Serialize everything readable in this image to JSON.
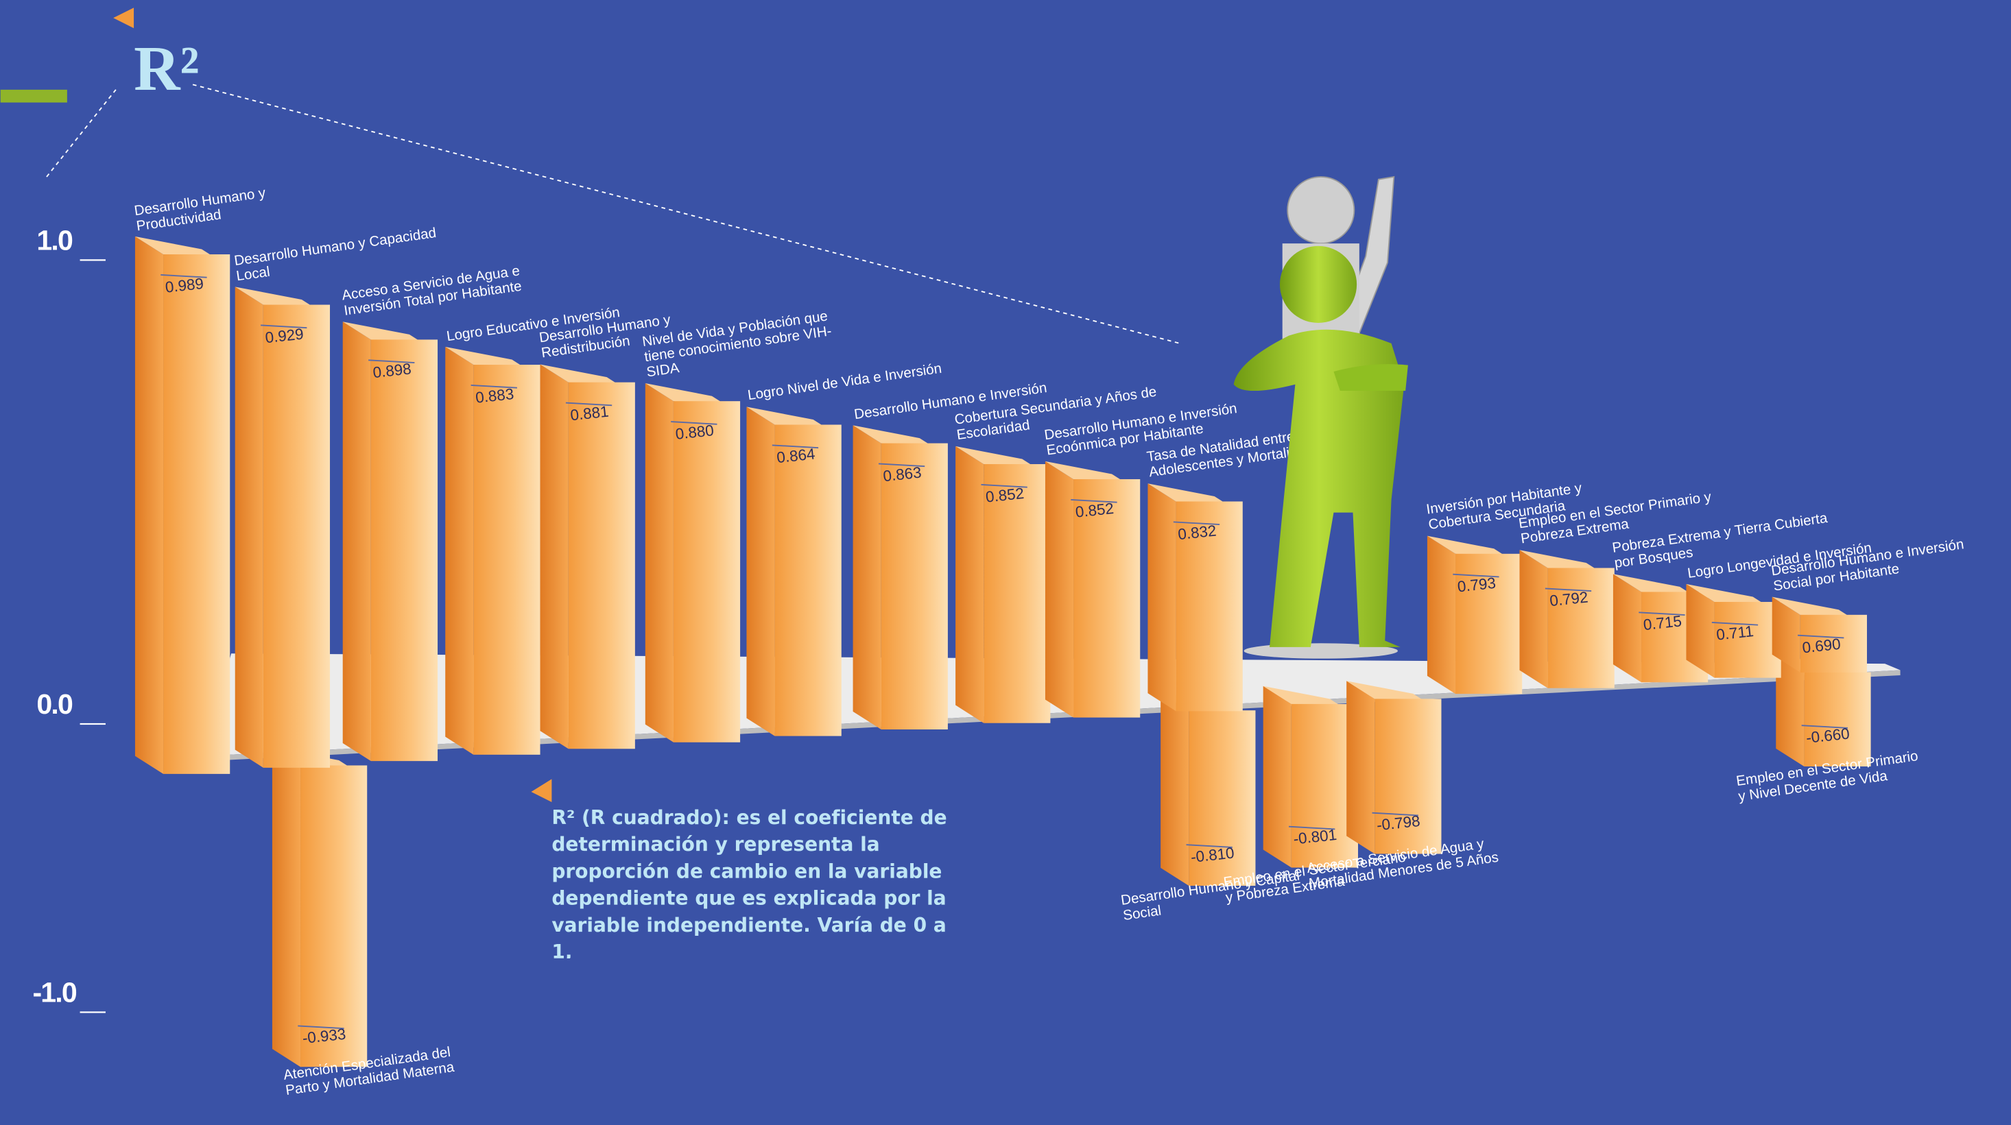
{
  "chart_data": {
    "type": "bar3d",
    "title": "R²",
    "description": "R² (R cuadrado): es el coeficiente de determinación y representa la proporción de cambio en la variable dependiente que es explicada por la variable independiente. Varía de 0 a 1,",
    "categories": [
      "Desarrollo Humano y Productividad",
      "Atención Especializada del Parto y Mortalidad Materna",
      "Desarrollo Humano y Capacidad Local",
      "Acceso a Servicio de Agua e Inversión Total por Habitante",
      "Logro Educativo e Inversión",
      "Desarrollo Humano y Redistribución",
      "Nivel de Vida y Población que tiene conocimiento sobre VIH-SIDA",
      "Logro Nivel de Vida e Inversión",
      "Desarrollo Humano e Inversión",
      "Cobertura Secundaria y Años de Escolaridad",
      "Desarrollo Humano e Inversión Ecoónmica por Habitante",
      "Tasa de Natalidad entre Adolescentes y Mortalidad Infantil",
      "Desarrollo Humano y Capital Social",
      "Empleo en el Sector Terciario y Pobreza Extrema",
      "Acceso a Servicio de Agua y Mortalidad Menores de 5 Años",
      "Inversión por Habitante y Cobertura Secundaria",
      "Empleo en el Sector Primario y Pobreza Extrema",
      "Pobreza Extrema y Tierra Cubierta por Bosques",
      "Logro Longevidad e Inversión",
      "Desarrollo Humano e Inversión Social por Habitante",
      "Empleo en el Sector Primario y Nivel Decente de Vida"
    ],
    "values": [
      0.989,
      -0.933,
      0.929,
      0.898,
      0.883,
      0.881,
      0.88,
      0.864,
      0.863,
      0.852,
      0.852,
      0.832,
      -0.81,
      -0.801,
      -0.798,
      0.793,
      0.792,
      0.715,
      0.711,
      0.69,
      -0.66
    ],
    "value_labels": [
      "0.989",
      "-0.933",
      "0.929",
      "0.898",
      "0.883",
      "0.881",
      "0.880",
      "0.864",
      "0.863",
      "0.852",
      "0.852",
      "0.832",
      "-0.810",
      "-0.801",
      "-0.798",
      "0.793",
      "0.792",
      "0.715",
      "0.711",
      "0.690",
      "-0.660"
    ],
    "color": "#f7a54a",
    "ylim": [
      -1,
      1
    ],
    "yticks": [
      {
        "value": 1,
        "label": "1.0"
      },
      {
        "value": 0,
        "label": "0.0"
      },
      {
        "value": -1,
        "label": "-1.0"
      }
    ]
  }
}
